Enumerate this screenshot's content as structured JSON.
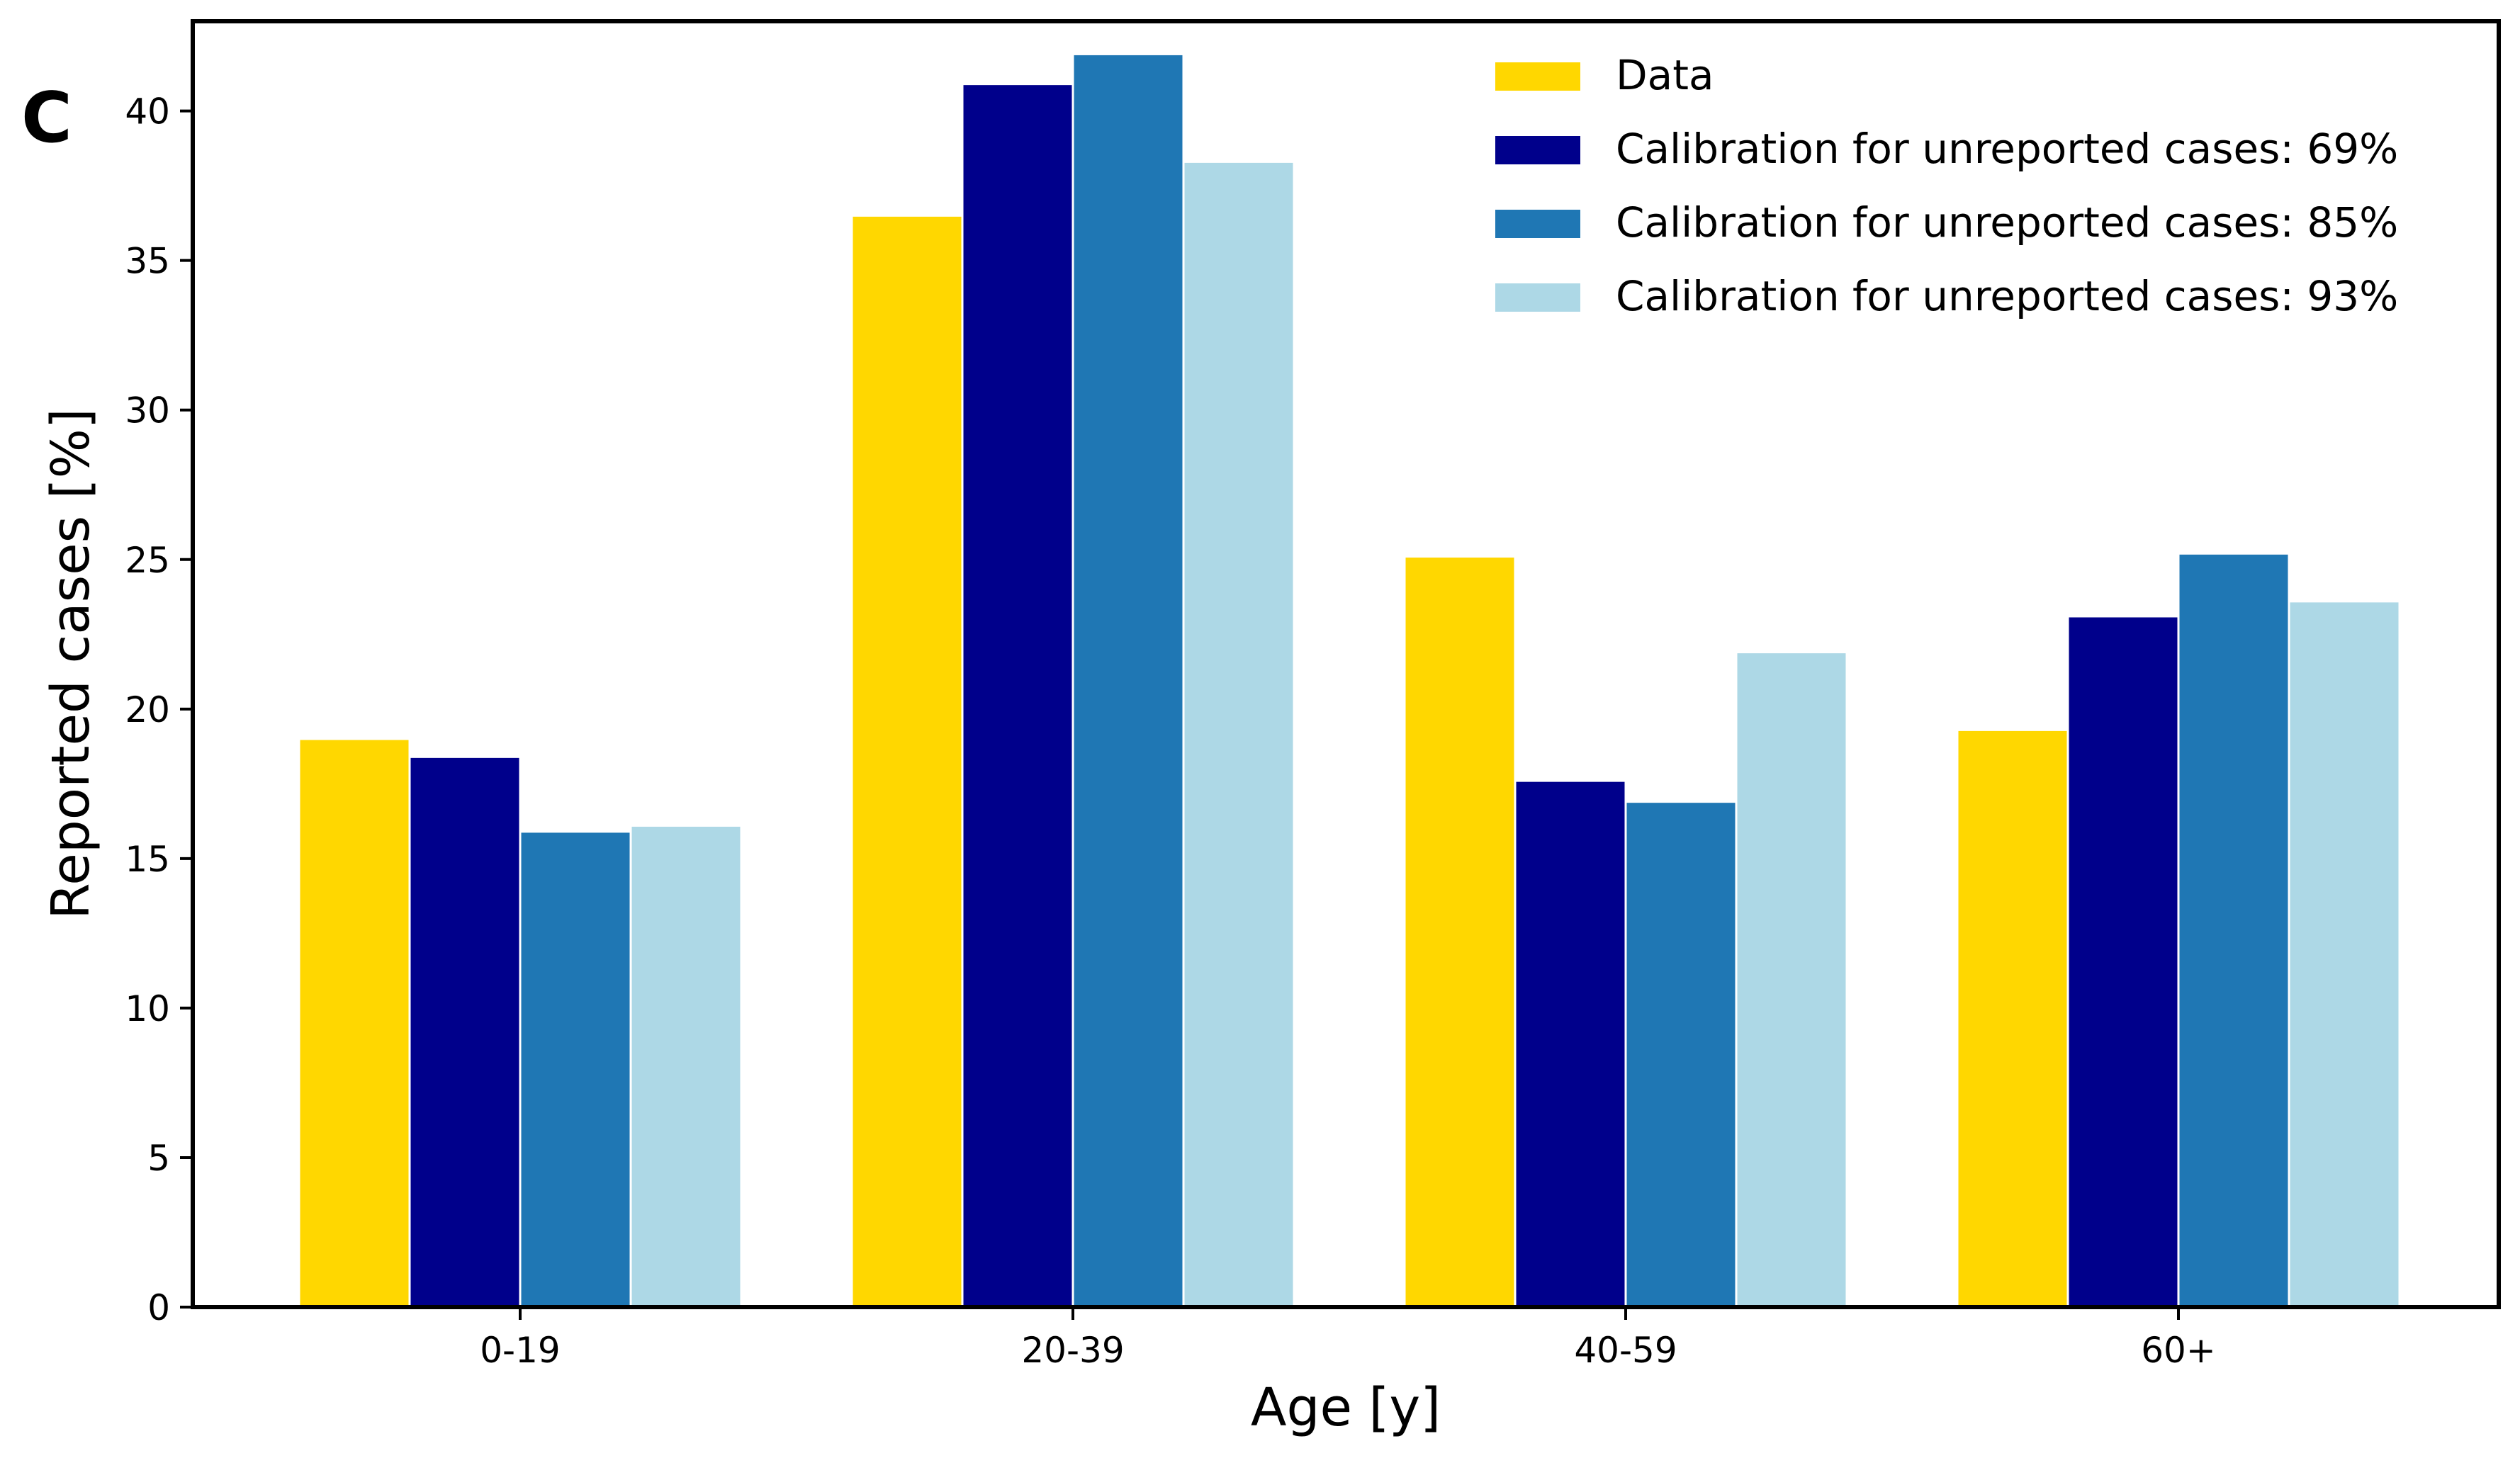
{
  "panel_label": "C",
  "chart_data": {
    "type": "bar",
    "categories": [
      "0-19",
      "20-39",
      "40-59",
      "60+"
    ],
    "series": [
      {
        "name": "Data",
        "color": "#FFD700",
        "values": [
          19.0,
          36.5,
          25.1,
          19.3
        ]
      },
      {
        "name": "Calibration for unreported cases: 69%",
        "color": "#00008B",
        "values": [
          18.4,
          40.9,
          17.6,
          23.1
        ]
      },
      {
        "name": "Calibration for unreported cases: 85%",
        "color": "#1F77B4",
        "values": [
          15.9,
          41.9,
          16.9,
          25.2
        ]
      },
      {
        "name": "Calibration for unreported cases: 93%",
        "color": "#ADD8E6",
        "values": [
          16.1,
          38.3,
          21.9,
          23.6
        ]
      }
    ],
    "xlabel": "Age [y]",
    "ylabel": "Reported cases [%]",
    "ylim": [
      0,
      43
    ],
    "yticks": [
      0,
      5,
      10,
      15,
      20,
      25,
      30,
      35,
      40
    ],
    "grid": false,
    "legend_position": "top-right"
  }
}
